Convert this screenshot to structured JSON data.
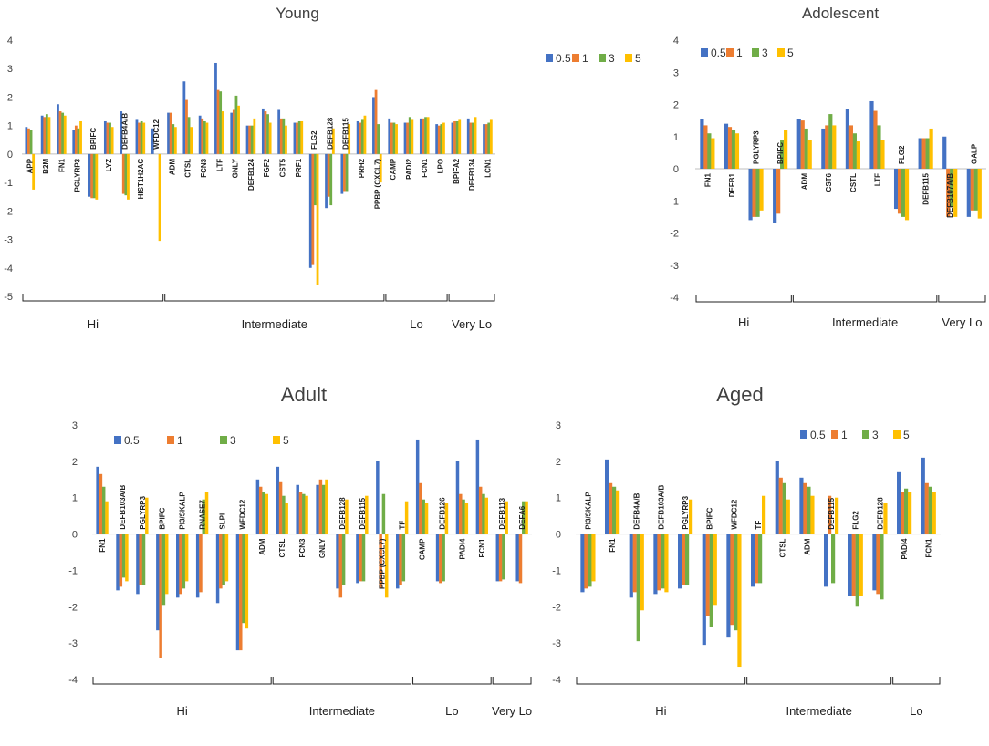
{
  "colors": {
    "s05": "#4472C4",
    "s1": "#ED7D31",
    "s3": "#70AD47",
    "s5": "#FFC000"
  },
  "chart_data": [
    {
      "type": "bar",
      "title": "Young",
      "ylim": [
        -5,
        4
      ],
      "yticks": [
        4,
        3,
        2,
        1,
        0,
        -1,
        -2,
        -3,
        -4,
        -5
      ],
      "series_names": [
        "0.5",
        "1",
        "3",
        "5"
      ],
      "categories": [
        "APP",
        "B2M",
        "FN1",
        "PGLYRP3",
        "BPIFC",
        "LYZ",
        "DEFB4A/B",
        "HIST1H2AC",
        "WFDC12",
        "ADM",
        "CTSL",
        "FCN3",
        "LTF",
        "GNLY",
        "DEFB124",
        "FGF2",
        "CST5",
        "PRF1",
        "FLG2",
        "DEFB128",
        "DEFB115",
        "PRH2",
        "PPBP (CXCL7)",
        "CAMP",
        "PADI2",
        "FCN1",
        "LPO",
        "BPIFA2",
        "DEFB134",
        "LCN1"
      ],
      "values": [
        [
          0.95,
          0.9,
          0.85,
          -1.25
        ],
        [
          1.35,
          1.3,
          1.4,
          1.3
        ],
        [
          1.75,
          1.5,
          1.45,
          1.35
        ],
        [
          0.85,
          1.0,
          0.9,
          1.15
        ],
        [
          -1.5,
          -1.55,
          -1.55,
          -1.6
        ],
        [
          1.15,
          1.1,
          1.1,
          0.95
        ],
        [
          1.5,
          -1.4,
          -1.45,
          -1.6
        ],
        [
          1.2,
          1.1,
          1.15,
          1.1
        ],
        [
          0.9,
          0,
          0,
          -3.05
        ],
        [
          1.45,
          1.45,
          1.05,
          0.95
        ],
        [
          2.55,
          1.9,
          1.3,
          0.95
        ],
        [
          1.35,
          1.25,
          1.15,
          1.1
        ],
        [
          3.2,
          2.25,
          2.2,
          1.5
        ],
        [
          1.45,
          1.55,
          2.05,
          1.7
        ],
        [
          1.0,
          1.0,
          1.0,
          1.25
        ],
        [
          1.6,
          1.5,
          1.4,
          1.1
        ],
        [
          1.55,
          1.25,
          1.25,
          1.0
        ],
        [
          1.1,
          1.1,
          1.15,
          1.15
        ],
        [
          -4.0,
          -3.9,
          -1.8,
          -4.6
        ],
        [
          -1.9,
          -1.5,
          -1.8,
          0.9
        ],
        [
          -1.4,
          -1.3,
          -1.3,
          1.05
        ],
        [
          1.15,
          1.1,
          1.2,
          1.35
        ],
        [
          2.0,
          2.25,
          1.05,
          -1.0
        ],
        [
          1.25,
          1.1,
          1.1,
          1.05
        ],
        [
          1.1,
          1.1,
          1.3,
          1.2
        ],
        [
          1.25,
          1.25,
          1.3,
          1.3
        ],
        [
          1.05,
          1.0,
          1.05,
          1.1
        ],
        [
          1.1,
          1.15,
          1.15,
          1.2
        ],
        [
          1.25,
          1.1,
          1.1,
          1.3
        ],
        [
          1.05,
          1.05,
          1.1,
          1.2
        ]
      ],
      "labels_below": [
        1,
        1,
        1,
        1,
        0,
        1,
        0,
        1,
        0,
        1,
        1,
        1,
        1,
        1,
        1,
        1,
        1,
        1,
        0,
        0,
        0,
        1,
        1,
        1,
        1,
        1,
        1,
        1,
        1,
        1
      ],
      "groups": [
        {
          "label": "Hi",
          "start": 0,
          "end": 8
        },
        {
          "label": "Intermediate",
          "start": 9,
          "end": 22
        },
        {
          "label": "Lo",
          "start": 23,
          "end": 26
        },
        {
          "label": "Very Lo",
          "start": 27,
          "end": 29
        }
      ]
    },
    {
      "type": "bar",
      "title": "Adolescent",
      "ylim": [
        -4,
        4
      ],
      "yticks": [
        4,
        3,
        2,
        1,
        0,
        -1,
        -2,
        -3,
        -4
      ],
      "series_names": [
        "0.5",
        "1",
        "3",
        "5"
      ],
      "categories": [
        "FN1",
        "DEFB1",
        "PGLYRP3",
        "BPIFC",
        "ADM",
        "CST6",
        "CSTL",
        "LTF",
        "FLG2",
        "DEFB115",
        "DEFB107A/B",
        "GALP"
      ],
      "values": [
        [
          1.55,
          1.35,
          1.1,
          0.95
        ],
        [
          1.4,
          1.3,
          1.2,
          1.1
        ],
        [
          -1.6,
          -1.5,
          -1.5,
          -1.3
        ],
        [
          -1.7,
          -1.4,
          0.9,
          1.2
        ],
        [
          1.55,
          1.5,
          1.25,
          0.9
        ],
        [
          1.25,
          1.35,
          1.7,
          1.35
        ],
        [
          1.85,
          1.35,
          1.1,
          0.85
        ],
        [
          2.1,
          1.8,
          1.35,
          0.9
        ],
        [
          -1.25,
          -1.4,
          -1.5,
          -1.6
        ],
        [
          0.95,
          0.95,
          0.95,
          1.25
        ],
        [
          1.0,
          -1.5,
          -1.2,
          -1.5
        ],
        [
          -1.5,
          -1.3,
          -1.3,
          -1.55
        ]
      ],
      "labels_below": [
        1,
        1,
        0,
        0,
        1,
        1,
        1,
        1,
        0,
        1,
        1,
        0
      ],
      "groups": [
        {
          "label": "Hi",
          "start": 0,
          "end": 3
        },
        {
          "label": "Intermediate",
          "start": 4,
          "end": 9
        },
        {
          "label": "Very Lo",
          "start": 10,
          "end": 11
        }
      ]
    },
    {
      "type": "bar",
      "title": "Adult",
      "ylim": [
        -4,
        3
      ],
      "yticks": [
        3,
        2,
        1,
        0,
        -1,
        -2,
        -3,
        -4
      ],
      "series_names": [
        "0.5",
        "1",
        "3",
        "5"
      ],
      "categories": [
        "FN1",
        "DEFB103A/B",
        "PGLYRP3",
        "BPIFC",
        "PI3/SKALP",
        "RNASE7",
        "SLPI",
        "WFDC12",
        "ADM",
        "CTSL",
        "FCN3",
        "GNLY",
        "DEFB128",
        "DEFB115",
        "PPBP (CXCL7)",
        "TF",
        "CAMP",
        "DEFB126",
        "PADI4",
        "FCN1",
        "DEFB113",
        "DEFA6"
      ],
      "values": [
        [
          1.85,
          1.65,
          1.3,
          0.9
        ],
        [
          -1.55,
          -1.45,
          -1.2,
          -1.3
        ],
        [
          -1.65,
          -1.4,
          -1.4,
          1.0
        ],
        [
          -2.65,
          -3.4,
          -1.95,
          -1.65
        ],
        [
          -1.75,
          -1.65,
          -1.5,
          -1.3
        ],
        [
          -1.75,
          -1.6,
          0.95,
          1.15
        ],
        [
          -1.9,
          -1.5,
          -1.4,
          -1.3
        ],
        [
          -3.2,
          -3.2,
          -2.45,
          -2.6
        ],
        [
          1.5,
          1.3,
          1.15,
          1.1
        ],
        [
          1.85,
          1.45,
          1.05,
          0.85
        ],
        [
          1.35,
          1.15,
          1.1,
          1.05
        ],
        [
          1.35,
          1.5,
          1.35,
          1.5
        ],
        [
          -1.5,
          -1.75,
          -1.4,
          0.95
        ],
        [
          -1.35,
          -1.3,
          -1.3,
          1.05
        ],
        [
          2.0,
          -1.5,
          1.1,
          -1.75
        ],
        [
          -1.5,
          -1.4,
          -1.3,
          0.9
        ],
        [
          2.6,
          1.4,
          0.95,
          0.85
        ],
        [
          -1.3,
          -1.35,
          -1.3,
          0.85
        ],
        [
          2.0,
          1.1,
          0.95,
          0.85
        ],
        [
          2.6,
          1.3,
          1.1,
          1.0
        ],
        [
          -1.3,
          -1.3,
          -1.25,
          0.9
        ],
        [
          -1.3,
          -1.35,
          0.9,
          0.9
        ]
      ],
      "labels_below": [
        1,
        0,
        0,
        0,
        0,
        0,
        0,
        0,
        1,
        1,
        1,
        1,
        0,
        0,
        1,
        0,
        1,
        0,
        1,
        1,
        0,
        0
      ],
      "groups": [
        {
          "label": "Hi",
          "start": 0,
          "end": 8
        },
        {
          "label": "Intermediate",
          "start": 9,
          "end": 15
        },
        {
          "label": "Lo",
          "start": 16,
          "end": 19
        },
        {
          "label": "Very Lo",
          "start": 20,
          "end": 21
        }
      ]
    },
    {
      "type": "bar",
      "title": "Aged",
      "ylim": [
        -4,
        3
      ],
      "yticks": [
        3,
        2,
        1,
        0,
        -1,
        -2,
        -3,
        -4
      ],
      "series_names": [
        "0.5",
        "1",
        "3",
        "5"
      ],
      "categories": [
        "PI3/SKALP",
        "FN1",
        "DEFB4A/B",
        "DEFB103A/B",
        "PGLYRP3",
        "BPIFC",
        "WFDC12",
        "TF",
        "CTSL",
        "ADM",
        "DEFB115",
        "FLG2",
        "DEFB128",
        "PADI4",
        "FCN1"
      ],
      "values": [
        [
          -1.6,
          -1.5,
          -1.45,
          -1.3
        ],
        [
          2.05,
          1.4,
          1.3,
          1.2
        ],
        [
          -1.75,
          -1.6,
          -2.95,
          -2.1
        ],
        [
          -1.65,
          -1.55,
          -1.5,
          -1.6
        ],
        [
          -1.5,
          -1.4,
          -1.4,
          0.95
        ],
        [
          -3.05,
          -2.25,
          -2.55,
          -1.95
        ],
        [
          -2.85,
          -2.5,
          -2.65,
          -3.65
        ],
        [
          -1.45,
          -1.35,
          -1.35,
          1.05
        ],
        [
          2.0,
          1.55,
          1.4,
          0.95
        ],
        [
          1.55,
          1.4,
          1.3,
          1.05
        ],
        [
          -1.45,
          1.05,
          -1.35,
          1.0
        ],
        [
          -1.7,
          -1.7,
          -2.0,
          -1.7
        ],
        [
          -1.55,
          -1.65,
          -1.8,
          0.85
        ],
        [
          1.7,
          1.15,
          1.25,
          1.15
        ],
        [
          2.1,
          1.4,
          1.3,
          1.15
        ]
      ],
      "labels_below": [
        0,
        1,
        0,
        0,
        0,
        0,
        0,
        0,
        1,
        1,
        0,
        0,
        0,
        1,
        1
      ],
      "groups": [
        {
          "label": "Hi",
          "start": 0,
          "end": 6
        },
        {
          "label": "Intermediate",
          "start": 7,
          "end": 12
        },
        {
          "label": "Lo",
          "start": 13,
          "end": 14
        }
      ]
    }
  ]
}
